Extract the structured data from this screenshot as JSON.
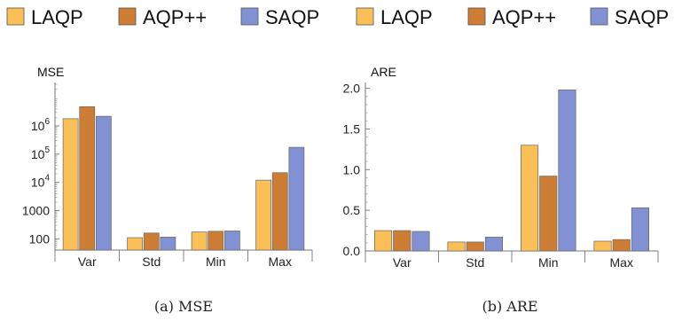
{
  "legend": {
    "entries": [
      {
        "name": "LAQP",
        "color": "#fbbf58"
      },
      {
        "name": "AQP++",
        "color": "#cd7d34"
      },
      {
        "name": "SAQP",
        "color": "#8291d3"
      }
    ]
  },
  "chart_data": [
    {
      "type": "bar",
      "scale": "log",
      "ylabel": "MSE",
      "categories": [
        "Var",
        "Std",
        "Min",
        "Max"
      ],
      "series": [
        {
          "name": "LAQP",
          "values": [
            1800000,
            110,
            175,
            12000
          ]
        },
        {
          "name": "AQP++",
          "values": [
            4800000,
            160,
            185,
            22000
          ]
        },
        {
          "name": "SAQP",
          "values": [
            2200000,
            115,
            190,
            175000
          ]
        }
      ],
      "ylim": [
        40,
        30000000
      ],
      "yticks": [
        {
          "value": 100,
          "label": "100"
        },
        {
          "value": 1000,
          "label": "1000"
        },
        {
          "value": 10000,
          "base": "10",
          "exp": "4"
        },
        {
          "value": 100000,
          "base": "10",
          "exp": "5"
        },
        {
          "value": 1000000,
          "base": "10",
          "exp": "6"
        }
      ],
      "caption": "(a) MSE"
    },
    {
      "type": "bar",
      "scale": "linear",
      "ylabel": "ARE",
      "categories": [
        "Var",
        "Std",
        "Min",
        "Max"
      ],
      "series": [
        {
          "name": "LAQP",
          "values": [
            0.25,
            0.11,
            1.3,
            0.12
          ]
        },
        {
          "name": "AQP++",
          "values": [
            0.25,
            0.11,
            0.92,
            0.14
          ]
        },
        {
          "name": "SAQP",
          "values": [
            0.24,
            0.17,
            1.98,
            0.53
          ]
        }
      ],
      "ylim": [
        0,
        2.05
      ],
      "yticks": [
        {
          "value": 0,
          "label": "0.0"
        },
        {
          "value": 0.5,
          "label": "0.5"
        },
        {
          "value": 1.0,
          "label": "1.0"
        },
        {
          "value": 1.5,
          "label": "1.5"
        },
        {
          "value": 2.0,
          "label": "2.0"
        }
      ],
      "caption": "(b) ARE"
    }
  ]
}
